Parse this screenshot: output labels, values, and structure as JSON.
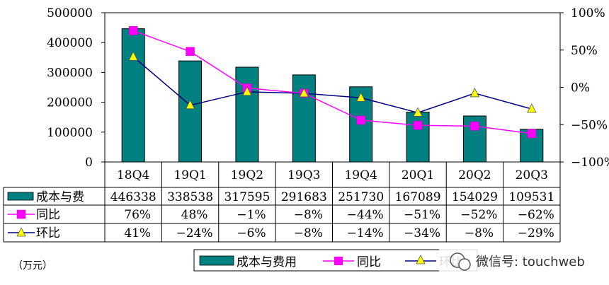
{
  "chart_data": {
    "type": "bar",
    "categories": [
      "18Q4",
      "19Q1",
      "19Q2",
      "19Q3",
      "19Q4",
      "20Q1",
      "20Q2",
      "20Q3"
    ],
    "series": [
      {
        "name": "成本与费用",
        "type": "bar",
        "axis": "left",
        "values": [
          446338,
          338538,
          317595,
          291683,
          251730,
          167089,
          154029,
          109531
        ],
        "table_label": "成本与费",
        "color": "#008080"
      },
      {
        "name": "同比",
        "type": "line",
        "axis": "right",
        "marker": "square",
        "values": [
          76,
          48,
          -1,
          -8,
          -44,
          -51,
          -52,
          -62
        ],
        "display": [
          "76%",
          "48%",
          "−1%",
          "−8%",
          "−44%",
          "−51%",
          "−52%",
          "−62%"
        ],
        "color": "#ff00ff"
      },
      {
        "name": "环比",
        "type": "line",
        "axis": "right",
        "marker": "triangle",
        "values": [
          41,
          -24,
          -6,
          -8,
          -14,
          -34,
          -8,
          -29
        ],
        "display": [
          "41%",
          "−24%",
          "−6%",
          "−8%",
          "−14%",
          "−34%",
          "−8%",
          "−29%"
        ],
        "color": "#000080",
        "marker_color": "#ffff00"
      }
    ],
    "y_left": {
      "ticks": [
        "500000",
        "400000",
        "300000",
        "200000",
        "100000",
        "0"
      ],
      "ylim": [
        0,
        500000
      ]
    },
    "y_right": {
      "ticks": [
        "100%",
        "50%",
        "0%",
        "−50%",
        "−100%"
      ],
      "ylim": [
        -100,
        100
      ]
    },
    "unit": "（万元）",
    "legend_position": "bottom",
    "grid": false,
    "data_table": true
  },
  "watermark": "微信号: touchweb"
}
